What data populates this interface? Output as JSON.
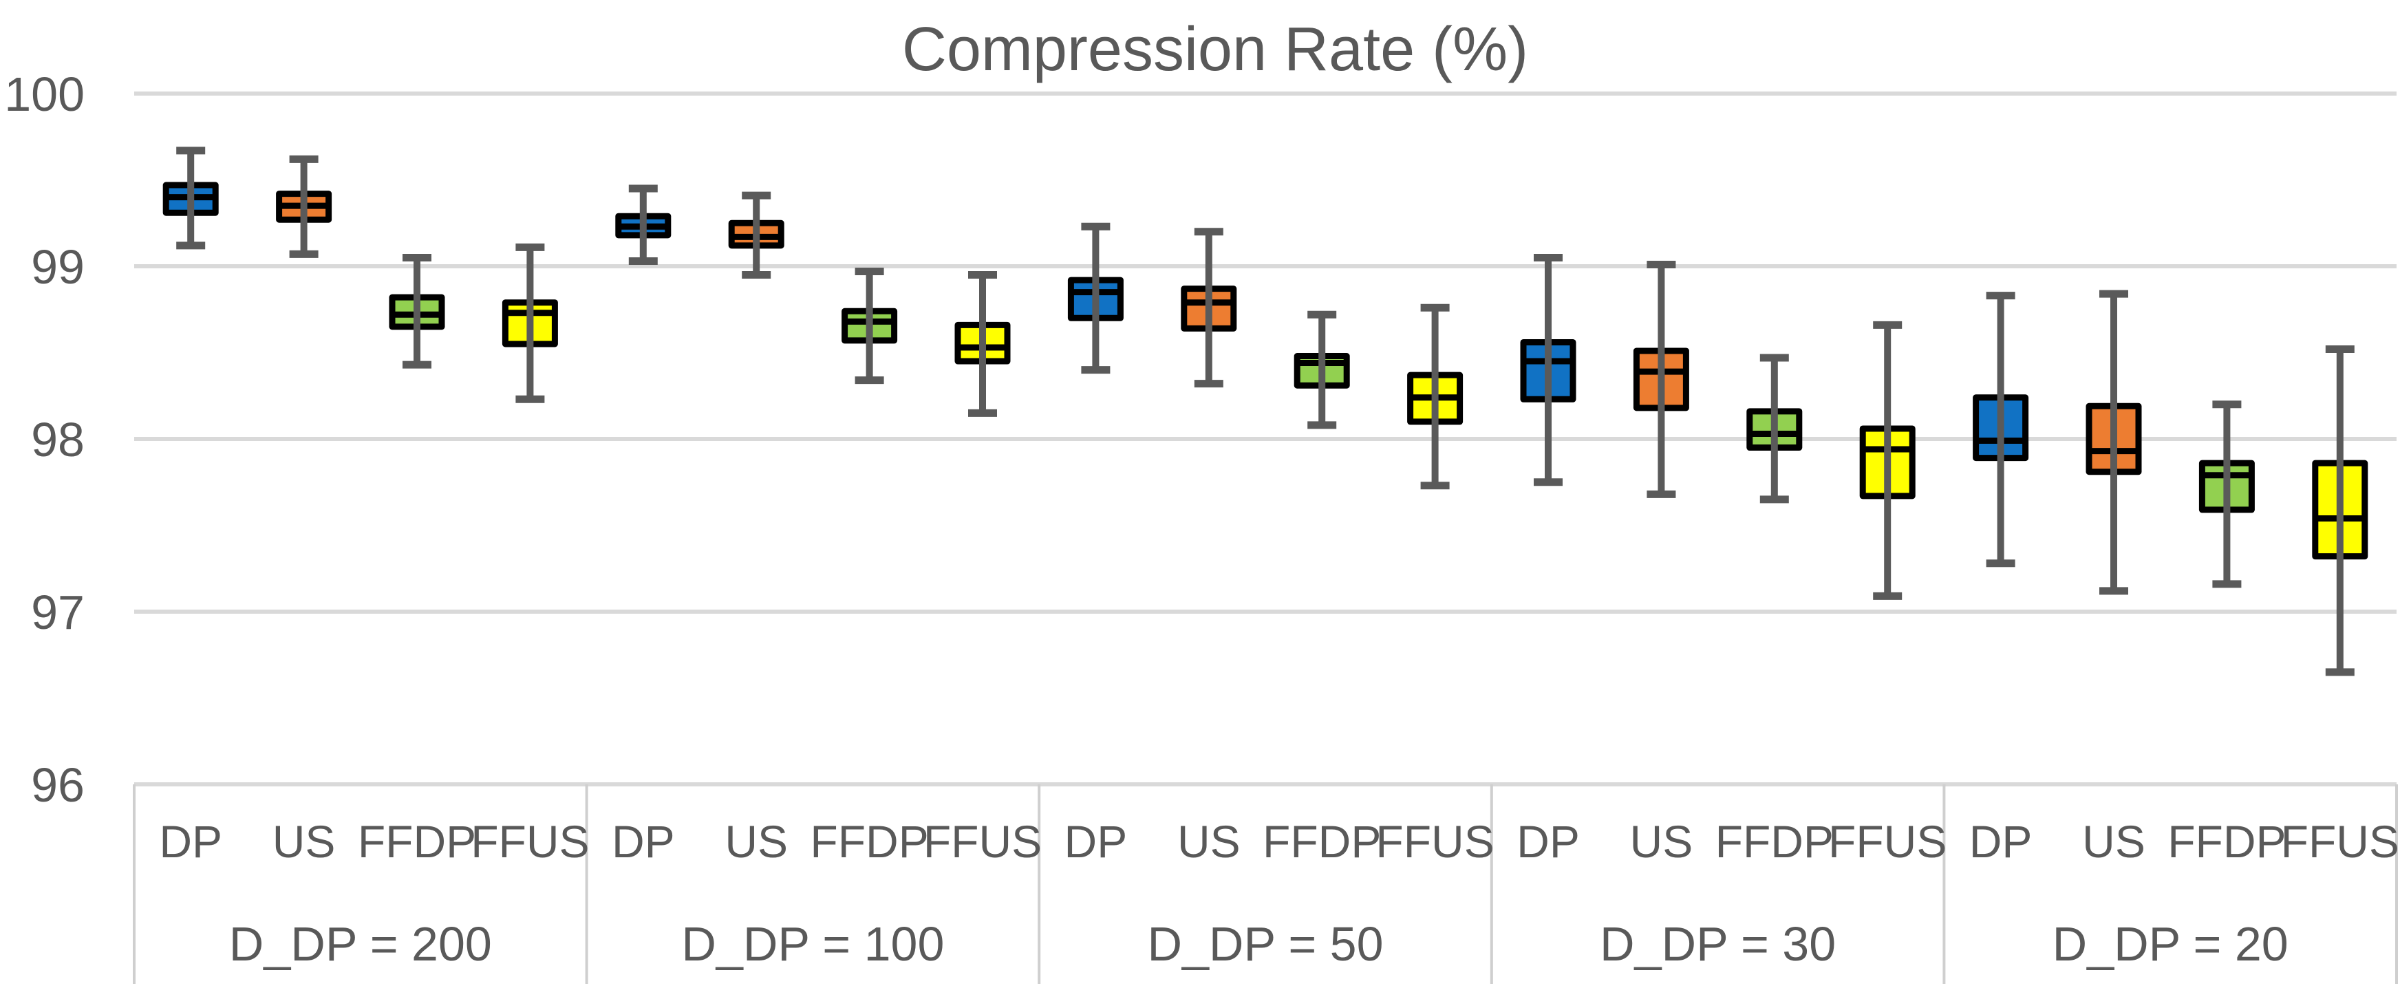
{
  "title": "Compression Rate (%)",
  "y_axis": {
    "ticks": [
      100,
      99,
      98,
      97,
      96
    ],
    "tick_labels": [
      "100",
      "99",
      "98",
      "97",
      "96"
    ]
  },
  "x_axis": {
    "series_labels": [
      "DP",
      "US",
      "FFDP",
      "FFUS"
    ],
    "group_labels": [
      "D_DP = 200",
      "D_DP = 100",
      "D_DP = 50",
      "D_DP = 30",
      "D_DP = 20"
    ]
  },
  "colors": {
    "DP": "#1172C4",
    "US": "#ED7D31",
    "FFDP": "#92D050",
    "FFUS": "#FFFF00",
    "box_border": "#000000",
    "median": "#000000",
    "whisker": "#5A5A5A",
    "gridline": "#D9D9D9",
    "divider": "#CFCFCF",
    "axis_text": "#595959",
    "title_text": "#595959",
    "background": "#FFFFFF"
  },
  "chart_data": {
    "type": "box",
    "title": "Compression Rate (%)",
    "xlabel": "",
    "ylabel": "",
    "ylim": [
      96,
      100
    ],
    "grid": true,
    "legend": false,
    "categories": [
      "D_DP = 200",
      "D_DP = 100",
      "D_DP = 50",
      "D_DP = 30",
      "D_DP = 20"
    ],
    "series": [
      "DP",
      "US",
      "FFDP",
      "FFUS"
    ],
    "boxes": [
      {
        "group": "D_DP = 200",
        "series": "DP",
        "whisker_low": 99.12,
        "q1": 99.31,
        "median": 99.4,
        "q3": 99.47,
        "whisker_high": 99.67
      },
      {
        "group": "D_DP = 200",
        "series": "US",
        "whisker_low": 99.07,
        "q1": 99.27,
        "median": 99.35,
        "q3": 99.42,
        "whisker_high": 99.62
      },
      {
        "group": "D_DP = 200",
        "series": "FFDP",
        "whisker_low": 98.43,
        "q1": 98.65,
        "median": 98.72,
        "q3": 98.82,
        "whisker_high": 99.05
      },
      {
        "group": "D_DP = 200",
        "series": "FFUS",
        "whisker_low": 98.23,
        "q1": 98.55,
        "median": 98.73,
        "q3": 98.79,
        "whisker_high": 99.11
      },
      {
        "group": "D_DP = 100",
        "series": "DP",
        "whisker_low": 99.03,
        "q1": 99.18,
        "median": 99.23,
        "q3": 99.29,
        "whisker_high": 99.45
      },
      {
        "group": "D_DP = 100",
        "series": "US",
        "whisker_low": 98.95,
        "q1": 99.12,
        "median": 99.17,
        "q3": 99.25,
        "whisker_high": 99.41
      },
      {
        "group": "D_DP = 100",
        "series": "FFDP",
        "whisker_low": 98.34,
        "q1": 98.57,
        "median": 98.68,
        "q3": 98.74,
        "whisker_high": 98.97
      },
      {
        "group": "D_DP = 100",
        "series": "FFUS",
        "whisker_low": 98.15,
        "q1": 98.45,
        "median": 98.53,
        "q3": 98.66,
        "whisker_high": 98.95
      },
      {
        "group": "D_DP = 50",
        "series": "DP",
        "whisker_low": 98.4,
        "q1": 98.7,
        "median": 98.85,
        "q3": 98.92,
        "whisker_high": 99.23
      },
      {
        "group": "D_DP = 50",
        "series": "US",
        "whisker_low": 98.32,
        "q1": 98.64,
        "median": 98.79,
        "q3": 98.87,
        "whisker_high": 99.2
      },
      {
        "group": "D_DP = 50",
        "series": "FFDP",
        "whisker_low": 98.08,
        "q1": 98.31,
        "median": 98.44,
        "q3": 98.48,
        "whisker_high": 98.72
      },
      {
        "group": "D_DP = 50",
        "series": "FFUS",
        "whisker_low": 97.73,
        "q1": 98.1,
        "median": 98.24,
        "q3": 98.37,
        "whisker_high": 98.76
      },
      {
        "group": "D_DP = 30",
        "series": "DP",
        "whisker_low": 97.75,
        "q1": 98.23,
        "median": 98.45,
        "q3": 98.56,
        "whisker_high": 99.05
      },
      {
        "group": "D_DP = 30",
        "series": "US",
        "whisker_low": 97.68,
        "q1": 98.18,
        "median": 98.39,
        "q3": 98.51,
        "whisker_high": 99.01
      },
      {
        "group": "D_DP = 30",
        "series": "FFDP",
        "whisker_low": 97.65,
        "q1": 97.95,
        "median": 98.03,
        "q3": 98.16,
        "whisker_high": 98.47
      },
      {
        "group": "D_DP = 30",
        "series": "FFUS",
        "whisker_low": 97.09,
        "q1": 97.67,
        "median": 97.94,
        "q3": 98.06,
        "whisker_high": 98.66
      },
      {
        "group": "D_DP = 20",
        "series": "DP",
        "whisker_low": 97.28,
        "q1": 97.89,
        "median": 97.99,
        "q3": 98.24,
        "whisker_high": 98.83
      },
      {
        "group": "D_DP = 20",
        "series": "US",
        "whisker_low": 97.12,
        "q1": 97.81,
        "median": 97.93,
        "q3": 98.19,
        "whisker_high": 98.84
      },
      {
        "group": "D_DP = 20",
        "series": "FFDP",
        "whisker_low": 97.16,
        "q1": 97.59,
        "median": 97.79,
        "q3": 97.86,
        "whisker_high": 98.2
      },
      {
        "group": "D_DP = 20",
        "series": "FFUS",
        "whisker_low": 96.65,
        "q1": 97.32,
        "median": 97.54,
        "q3": 97.86,
        "whisker_high": 98.52
      }
    ]
  }
}
